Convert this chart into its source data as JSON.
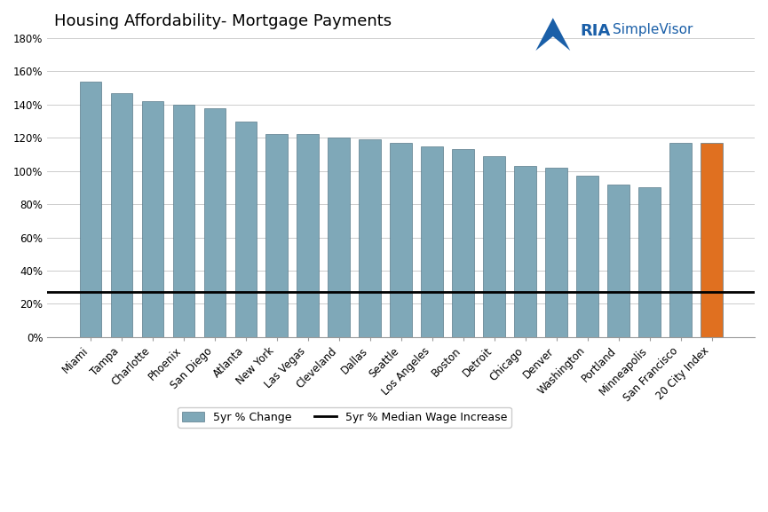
{
  "title": "Housing Affordability- Mortgage Payments",
  "categories": [
    "Miami",
    "Tampa",
    "Charlotte",
    "Phoenix",
    "San Diego",
    "Atlanta",
    "New York",
    "Las Vegas",
    "Cleveland",
    "Dallas",
    "Seattle",
    "Los Angeles",
    "Boston",
    "Detroit",
    "Chicago",
    "Denver",
    "Washington",
    "Portland",
    "Minneapolis",
    "San Francisco",
    "20 City Index"
  ],
  "values": [
    154,
    147,
    142,
    140,
    138,
    130,
    122,
    122,
    120,
    119,
    117,
    115,
    113,
    109,
    103,
    102,
    97,
    92,
    90,
    117,
    117
  ],
  "bar_color_default": "#7fa8b8",
  "bar_color_last": "#e07020",
  "bar_edge_color": "#5a7a8a",
  "median_wage_line": 27,
  "ylim_min": 0,
  "ylim_max": 180,
  "ytick_step": 20,
  "legend_label_bar": "5yr % Change",
  "legend_label_line": "5yr % Median Wage Increase",
  "background_color": "#ffffff",
  "grid_color": "#cccccc",
  "title_fontsize": 13,
  "tick_fontsize": 8.5,
  "legend_fontsize": 9
}
